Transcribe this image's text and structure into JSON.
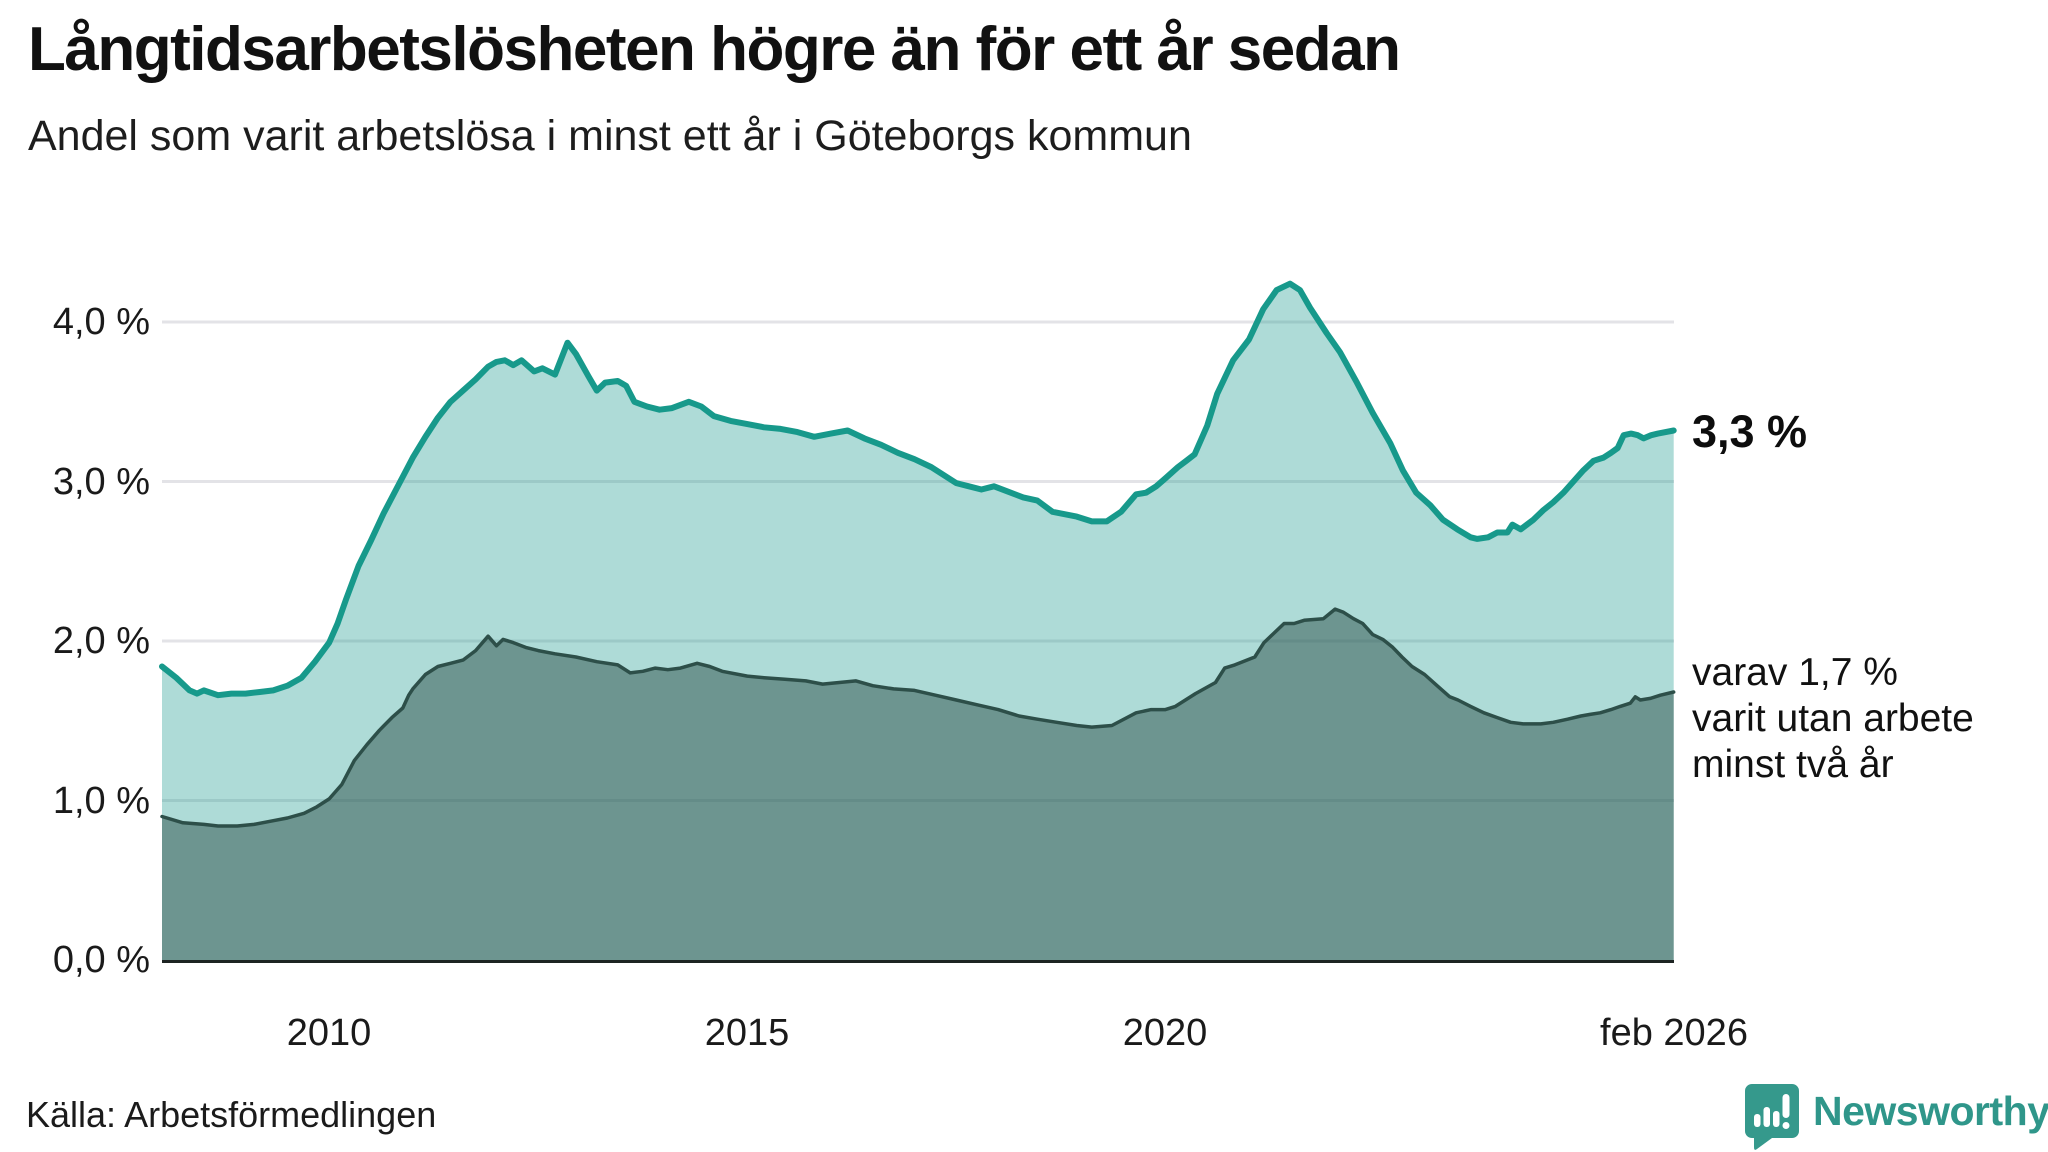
{
  "header": {
    "title": "Långtidsarbetslösheten högre än för ett år sedan",
    "subtitle": "Andel som varit arbetslösa i minst ett år i Göteborgs kommun"
  },
  "annotations": {
    "series1_end_label": "3,3 %",
    "series2_end_lines": [
      "varav 1,7 %",
      "varit utan arbete",
      "minst två år"
    ]
  },
  "footer": {
    "source": "Källa: Arbetsförmedlingen"
  },
  "logo": {
    "text": "Newsworthy",
    "icon": "newsworthy-chart-pin-icon",
    "color": "#2f968a"
  },
  "chart_data": {
    "type": "area",
    "title": "Långtidsarbetslösheten högre än för ett år sedan",
    "xlabel": "",
    "ylabel": "",
    "grid": true,
    "legend_position": "end-of-line-annotations",
    "x_axis": {
      "range": [
        2008.0,
        2026.083
      ],
      "tick_years": [
        2010,
        2015,
        2020,
        2026.083
      ],
      "labels": [
        "2010",
        "2015",
        "2020",
        "feb 2026"
      ]
    },
    "y_axis": {
      "unit": "%",
      "range": [
        0,
        4.3
      ],
      "tick_values": [
        4,
        3,
        2,
        1,
        0
      ],
      "labels": [
        "4,0 %",
        "3,0 %",
        "2,0 %",
        "1,0 %",
        "0,0 %"
      ],
      "gridline_ticks": [
        4,
        3,
        2,
        1
      ]
    },
    "colors": {
      "gridline": "#e3e3e7",
      "baseline": "#1d2422",
      "series1_line": "#17998b",
      "series1_fill": "rgba(23,153,139,0.35)",
      "series2_line": "#2d4f49",
      "series2_fill": "rgba(44,79,73,0.50)"
    },
    "series": [
      {
        "name": "Arbetslösa minst ett år",
        "end_value_pct": 3.3,
        "line_width": 6,
        "points": [
          [
            2008,
            1.84
          ],
          [
            2008.17,
            1.77
          ],
          [
            2008.33,
            1.69
          ],
          [
            2008.42,
            1.67
          ],
          [
            2008.5,
            1.69
          ],
          [
            2008.67,
            1.66
          ],
          [
            2008.83,
            1.67
          ],
          [
            2009,
            1.67
          ],
          [
            2009.17,
            1.68
          ],
          [
            2009.33,
            1.69
          ],
          [
            2009.5,
            1.72
          ],
          [
            2009.67,
            1.77
          ],
          [
            2009.83,
            1.87
          ],
          [
            2010,
            1.99
          ],
          [
            2010.1,
            2.11
          ],
          [
            2010.2,
            2.26
          ],
          [
            2010.35,
            2.47
          ],
          [
            2010.5,
            2.63
          ],
          [
            2010.65,
            2.8
          ],
          [
            2010.8,
            2.95
          ],
          [
            2010.9,
            3.05
          ],
          [
            2011,
            3.15
          ],
          [
            2011.15,
            3.28
          ],
          [
            2011.3,
            3.4
          ],
          [
            2011.45,
            3.5
          ],
          [
            2011.6,
            3.57
          ],
          [
            2011.75,
            3.64
          ],
          [
            2011.9,
            3.72
          ],
          [
            2012,
            3.75
          ],
          [
            2012.1,
            3.76
          ],
          [
            2012.2,
            3.73
          ],
          [
            2012.3,
            3.76
          ],
          [
            2012.45,
            3.69
          ],
          [
            2012.55,
            3.71
          ],
          [
            2012.7,
            3.67
          ],
          [
            2012.85,
            3.87
          ],
          [
            2012.95,
            3.8
          ],
          [
            2013.1,
            3.66
          ],
          [
            2013.2,
            3.57
          ],
          [
            2013.3,
            3.62
          ],
          [
            2013.45,
            3.63
          ],
          [
            2013.55,
            3.6
          ],
          [
            2013.65,
            3.5
          ],
          [
            2013.8,
            3.47
          ],
          [
            2013.95,
            3.45
          ],
          [
            2014.1,
            3.46
          ],
          [
            2014.3,
            3.5
          ],
          [
            2014.45,
            3.47
          ],
          [
            2014.6,
            3.41
          ],
          [
            2014.8,
            3.38
          ],
          [
            2015,
            3.36
          ],
          [
            2015.2,
            3.34
          ],
          [
            2015.4,
            3.33
          ],
          [
            2015.6,
            3.31
          ],
          [
            2015.8,
            3.28
          ],
          [
            2016,
            3.3
          ],
          [
            2016.2,
            3.32
          ],
          [
            2016.4,
            3.27
          ],
          [
            2016.6,
            3.23
          ],
          [
            2016.8,
            3.18
          ],
          [
            2017,
            3.14
          ],
          [
            2017.2,
            3.09
          ],
          [
            2017.35,
            3.04
          ],
          [
            2017.5,
            2.99
          ],
          [
            2017.65,
            2.97
          ],
          [
            2017.8,
            2.95
          ],
          [
            2017.95,
            2.97
          ],
          [
            2018.1,
            2.94
          ],
          [
            2018.3,
            2.9
          ],
          [
            2018.47,
            2.88
          ],
          [
            2018.65,
            2.81
          ],
          [
            2018.94,
            2.78
          ],
          [
            2019.12,
            2.75
          ],
          [
            2019.3,
            2.75
          ],
          [
            2019.47,
            2.81
          ],
          [
            2019.65,
            2.92
          ],
          [
            2019.77,
            2.93
          ],
          [
            2019.89,
            2.97
          ],
          [
            2020,
            3.02
          ],
          [
            2020.15,
            3.09
          ],
          [
            2020.25,
            3.13
          ],
          [
            2020.35,
            3.17
          ],
          [
            2020.5,
            3.35
          ],
          [
            2020.62,
            3.55
          ],
          [
            2020.81,
            3.76
          ],
          [
            2021,
            3.89
          ],
          [
            2021.17,
            4.08
          ],
          [
            2021.33,
            4.2
          ],
          [
            2021.49,
            4.24
          ],
          [
            2021.61,
            4.2
          ],
          [
            2021.73,
            4.09
          ],
          [
            2021.93,
            3.93
          ],
          [
            2022.09,
            3.81
          ],
          [
            2022.29,
            3.62
          ],
          [
            2022.48,
            3.43
          ],
          [
            2022.69,
            3.24
          ],
          [
            2022.84,
            3.07
          ],
          [
            2023,
            2.93
          ],
          [
            2023.17,
            2.85
          ],
          [
            2023.32,
            2.76
          ],
          [
            2023.49,
            2.7
          ],
          [
            2023.65,
            2.65
          ],
          [
            2023.73,
            2.64
          ],
          [
            2023.86,
            2.65
          ],
          [
            2023.97,
            2.68
          ],
          [
            2024.09,
            2.68
          ],
          [
            2024.15,
            2.73
          ],
          [
            2024.25,
            2.7
          ],
          [
            2024.4,
            2.76
          ],
          [
            2024.52,
            2.82
          ],
          [
            2024.64,
            2.87
          ],
          [
            2024.76,
            2.93
          ],
          [
            2024.88,
            3
          ],
          [
            2025,
            3.07
          ],
          [
            2025.12,
            3.13
          ],
          [
            2025.24,
            3.15
          ],
          [
            2025.33,
            3.18
          ],
          [
            2025.41,
            3.21
          ],
          [
            2025.48,
            3.29
          ],
          [
            2025.57,
            3.3
          ],
          [
            2025.65,
            3.29
          ],
          [
            2025.72,
            3.27
          ],
          [
            2025.81,
            3.29
          ],
          [
            2025.89,
            3.3
          ],
          [
            2026.08,
            3.32
          ]
        ]
      },
      {
        "name": "varav utan arbete minst två år",
        "end_value_pct": 1.7,
        "line_width": 3.5,
        "points": [
          [
            2008,
            0.9
          ],
          [
            2008.25,
            0.86
          ],
          [
            2008.5,
            0.85
          ],
          [
            2008.67,
            0.84
          ],
          [
            2008.9,
            0.84
          ],
          [
            2009.1,
            0.85
          ],
          [
            2009.3,
            0.87
          ],
          [
            2009.5,
            0.89
          ],
          [
            2009.7,
            0.92
          ],
          [
            2009.85,
            0.96
          ],
          [
            2010,
            1.01
          ],
          [
            2010.15,
            1.1
          ],
          [
            2010.3,
            1.25
          ],
          [
            2010.45,
            1.35
          ],
          [
            2010.6,
            1.44
          ],
          [
            2010.75,
            1.52
          ],
          [
            2010.88,
            1.58
          ],
          [
            2010.95,
            1.66
          ],
          [
            2011,
            1.7
          ],
          [
            2011.15,
            1.79
          ],
          [
            2011.3,
            1.84
          ],
          [
            2011.45,
            1.86
          ],
          [
            2011.6,
            1.88
          ],
          [
            2011.75,
            1.94
          ],
          [
            2011.9,
            2.03
          ],
          [
            2012,
            1.97
          ],
          [
            2012.08,
            2.01
          ],
          [
            2012.2,
            1.99
          ],
          [
            2012.35,
            1.96
          ],
          [
            2012.5,
            1.94
          ],
          [
            2012.7,
            1.92
          ],
          [
            2012.95,
            1.9
          ],
          [
            2013.2,
            1.87
          ],
          [
            2013.45,
            1.85
          ],
          [
            2013.6,
            1.8
          ],
          [
            2013.75,
            1.81
          ],
          [
            2013.9,
            1.83
          ],
          [
            2014.05,
            1.82
          ],
          [
            2014.2,
            1.83
          ],
          [
            2014.4,
            1.86
          ],
          [
            2014.55,
            1.84
          ],
          [
            2014.7,
            1.81
          ],
          [
            2015,
            1.78
          ],
          [
            2015.2,
            1.77
          ],
          [
            2015.45,
            1.76
          ],
          [
            2015.7,
            1.75
          ],
          [
            2015.9,
            1.73
          ],
          [
            2016.1,
            1.74
          ],
          [
            2016.3,
            1.75
          ],
          [
            2016.5,
            1.72
          ],
          [
            2016.75,
            1.7
          ],
          [
            2017,
            1.69
          ],
          [
            2017.25,
            1.66
          ],
          [
            2017.5,
            1.63
          ],
          [
            2017.75,
            1.6
          ],
          [
            2018,
            1.57
          ],
          [
            2018.25,
            1.53
          ],
          [
            2018.47,
            1.51
          ],
          [
            2018.7,
            1.49
          ],
          [
            2018.94,
            1.47
          ],
          [
            2019.12,
            1.46
          ],
          [
            2019.36,
            1.47
          ],
          [
            2019.65,
            1.55
          ],
          [
            2019.83,
            1.57
          ],
          [
            2020,
            1.57
          ],
          [
            2020.12,
            1.59
          ],
          [
            2020.36,
            1.67
          ],
          [
            2020.6,
            1.74
          ],
          [
            2020.71,
            1.83
          ],
          [
            2020.83,
            1.85
          ],
          [
            2021.07,
            1.9
          ],
          [
            2021.18,
            1.99
          ],
          [
            2021.42,
            2.11
          ],
          [
            2021.54,
            2.11
          ],
          [
            2021.66,
            2.13
          ],
          [
            2021.89,
            2.14
          ],
          [
            2022.03,
            2.2
          ],
          [
            2022.13,
            2.18
          ],
          [
            2022.25,
            2.14
          ],
          [
            2022.36,
            2.11
          ],
          [
            2022.48,
            2.04
          ],
          [
            2022.6,
            2.01
          ],
          [
            2022.72,
            1.96
          ],
          [
            2022.83,
            1.9
          ],
          [
            2022.95,
            1.84
          ],
          [
            2023.1,
            1.79
          ],
          [
            2023.25,
            1.72
          ],
          [
            2023.4,
            1.65
          ],
          [
            2023.5,
            1.63
          ],
          [
            2023.65,
            1.59
          ],
          [
            2023.81,
            1.55
          ],
          [
            2023.97,
            1.52
          ],
          [
            2024.13,
            1.49
          ],
          [
            2024.28,
            1.48
          ],
          [
            2024.49,
            1.48
          ],
          [
            2024.64,
            1.49
          ],
          [
            2024.81,
            1.51
          ],
          [
            2024.97,
            1.53
          ],
          [
            2025.08,
            1.54
          ],
          [
            2025.2,
            1.55
          ],
          [
            2025.33,
            1.57
          ],
          [
            2025.44,
            1.59
          ],
          [
            2025.56,
            1.61
          ],
          [
            2025.62,
            1.65
          ],
          [
            2025.68,
            1.63
          ],
          [
            2025.8,
            1.64
          ],
          [
            2025.92,
            1.66
          ],
          [
            2026.08,
            1.68
          ]
        ]
      }
    ]
  }
}
